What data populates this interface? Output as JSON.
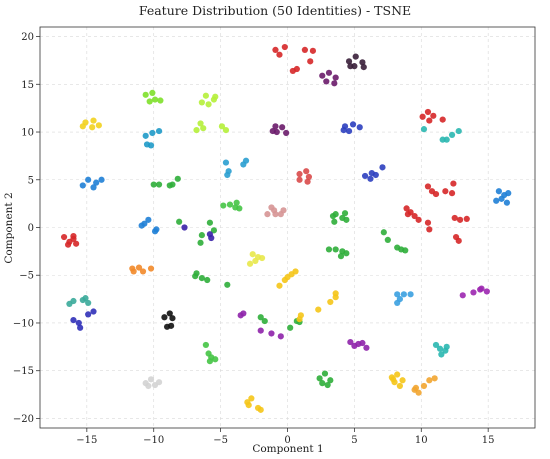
{
  "chart_data": {
    "type": "scatter",
    "title": "Feature Distribution (50 Identities) - TSNE",
    "xlabel": "Component 1",
    "ylabel": "Component 2",
    "xlim": [
      -18.5,
      18.5
    ],
    "ylim": [
      -21,
      21
    ],
    "xticks": [
      -15,
      -10,
      -5,
      0,
      5,
      10,
      15
    ],
    "yticks": [
      -20,
      -15,
      -10,
      -5,
      0,
      5,
      10,
      15,
      20
    ],
    "grid": true,
    "clusters": [
      {
        "color": "#d62728",
        "points": [
          [
            -0.9,
            18.6
          ],
          [
            -0.2,
            18.9
          ],
          [
            -0.6,
            18.1
          ],
          [
            0.4,
            16.4
          ],
          [
            0.7,
            16.6
          ],
          [
            1.3,
            18.6
          ],
          [
            1.9,
            18.5
          ],
          [
            1.7,
            17.4
          ]
        ]
      },
      {
        "color": "#6a1b6a",
        "points": [
          [
            2.6,
            15.9
          ],
          [
            3.1,
            16.2
          ],
          [
            3.6,
            15.7
          ],
          [
            2.9,
            15.3
          ],
          [
            3.5,
            15.1
          ]
        ]
      },
      {
        "color": "#3a1f3a",
        "points": [
          [
            4.6,
            17.4
          ],
          [
            5.1,
            17.9
          ],
          [
            5.6,
            17.3
          ],
          [
            5.0,
            16.9
          ],
          [
            5.7,
            16.8
          ],
          [
            4.7,
            16.9
          ]
        ]
      },
      {
        "color": "#f2d21e",
        "points": [
          [
            -15.1,
            11.0
          ],
          [
            -14.5,
            11.2
          ],
          [
            -14.6,
            10.5
          ],
          [
            -15.3,
            10.6
          ],
          [
            -14.1,
            10.7
          ]
        ]
      },
      {
        "color": "#7ee02a",
        "points": [
          [
            -10.6,
            13.9
          ],
          [
            -10.1,
            14.1
          ],
          [
            -9.9,
            13.4
          ],
          [
            -9.5,
            13.3
          ],
          [
            -10.3,
            13.2
          ]
        ]
      },
      {
        "color": "#b5ef3a",
        "points": [
          [
            -6.1,
            13.8
          ],
          [
            -5.5,
            13.4
          ],
          [
            -5.9,
            12.9
          ],
          [
            -5.4,
            13.7
          ],
          [
            -6.4,
            13.1
          ]
        ]
      },
      {
        "color": "#b5ef3a",
        "points": [
          [
            -6.8,
            10.2
          ],
          [
            -6.3,
            10.4
          ],
          [
            -6.5,
            10.9
          ],
          [
            -4.9,
            10.6
          ],
          [
            -4.6,
            10.2
          ]
        ]
      },
      {
        "color": "#1f9ac8",
        "points": [
          [
            -10.6,
            9.6
          ],
          [
            -10.1,
            9.9
          ],
          [
            -9.6,
            10.1
          ],
          [
            -10.5,
            8.7
          ],
          [
            -10.2,
            8.6
          ]
        ]
      },
      {
        "color": "#6a1b6a",
        "points": [
          [
            -0.9,
            10.6
          ],
          [
            -0.4,
            10.5
          ],
          [
            -0.8,
            10.0
          ],
          [
            -0.1,
            9.9
          ],
          [
            -1.1,
            10.1
          ]
        ]
      },
      {
        "color": "#2c3fbf",
        "points": [
          [
            4.3,
            10.6
          ],
          [
            4.9,
            10.8
          ],
          [
            5.4,
            10.5
          ],
          [
            4.6,
            10.1
          ],
          [
            4.2,
            10.2
          ]
        ]
      },
      {
        "color": "#d62728",
        "points": [
          [
            10.1,
            11.6
          ],
          [
            10.5,
            12.1
          ],
          [
            10.9,
            11.7
          ],
          [
            10.6,
            11.2
          ],
          [
            11.6,
            11.3
          ]
        ]
      },
      {
        "color": "#2ab7b0",
        "points": [
          [
            10.2,
            10.3
          ],
          [
            11.6,
            9.2
          ],
          [
            11.9,
            9.2
          ],
          [
            12.3,
            9.7
          ],
          [
            12.8,
            10.1
          ]
        ]
      },
      {
        "color": "#1f7fd6",
        "points": [
          [
            -15.3,
            4.4
          ],
          [
            -14.9,
            5.0
          ],
          [
            -14.5,
            4.2
          ],
          [
            -14.3,
            4.7
          ],
          [
            -13.9,
            5.0
          ]
        ]
      },
      {
        "color": "#2fae3a",
        "points": [
          [
            -10.0,
            4.5
          ],
          [
            -9.6,
            4.5
          ],
          [
            -8.6,
            4.5
          ],
          [
            -8.2,
            5.1
          ],
          [
            -8.8,
            4.4
          ]
        ]
      },
      {
        "color": "#2a9fd0",
        "points": [
          [
            -4.6,
            6.8
          ],
          [
            -4.4,
            5.9
          ],
          [
            -4.5,
            5.5
          ],
          [
            -3.1,
            7.0
          ],
          [
            -3.3,
            6.6
          ]
        ]
      },
      {
        "color": "#d94a4a",
        "points": [
          [
            0.9,
            5.6
          ],
          [
            1.4,
            5.9
          ],
          [
            1.6,
            5.3
          ],
          [
            0.9,
            5.0
          ],
          [
            1.5,
            4.8
          ]
        ]
      },
      {
        "color": "#2c3fbf",
        "points": [
          [
            5.8,
            5.4
          ],
          [
            6.3,
            5.7
          ],
          [
            6.6,
            5.5
          ],
          [
            7.1,
            6.3
          ],
          [
            6.2,
            5.1
          ]
        ]
      },
      {
        "color": "#d62728",
        "points": [
          [
            10.5,
            4.3
          ],
          [
            10.8,
            3.8
          ],
          [
            11.1,
            3.5
          ],
          [
            11.8,
            3.8
          ],
          [
            12.3,
            3.6
          ],
          [
            12.4,
            4.6
          ]
        ]
      },
      {
        "color": "#1f7fd6",
        "points": [
          [
            15.8,
            3.8
          ],
          [
            16.2,
            3.4
          ],
          [
            16.5,
            3.6
          ],
          [
            16.0,
            3.0
          ],
          [
            16.4,
            2.6
          ],
          [
            15.6,
            2.8
          ]
        ]
      },
      {
        "color": "#d62728",
        "points": [
          [
            -16.7,
            -1.0
          ],
          [
            -16.3,
            -1.5
          ],
          [
            -16.0,
            -1.2
          ],
          [
            -16.4,
            -1.8
          ],
          [
            -15.8,
            -1.7
          ],
          [
            -16.0,
            -0.9
          ]
        ]
      },
      {
        "color": "#1f7fd6",
        "points": [
          [
            -10.7,
            0.4
          ],
          [
            -10.4,
            0.8
          ],
          [
            -9.8,
            -0.2
          ],
          [
            -9.9,
            -0.4
          ],
          [
            -10.9,
            0.2
          ]
        ]
      },
      {
        "color": "#2fae3a",
        "points": [
          [
            -8.1,
            0.6
          ],
          [
            -5.8,
            0.5
          ],
          [
            -5.5,
            -0.3
          ],
          [
            -6.4,
            -0.8
          ],
          [
            -6.5,
            -1.6
          ],
          [
            -6.9,
            -5.1
          ]
        ]
      },
      {
        "color": "#3a22a8",
        "points": [
          [
            -7.7,
            0.0
          ],
          [
            -5.8,
            -0.7
          ],
          [
            -5.7,
            -1.1
          ]
        ]
      },
      {
        "color": "#45c445",
        "points": [
          [
            -4.8,
            2.3
          ],
          [
            -4.3,
            2.4
          ],
          [
            -3.8,
            2.6
          ],
          [
            -3.6,
            2.0
          ],
          [
            -3.9,
            2.1
          ]
        ]
      },
      {
        "color": "#d69595",
        "points": [
          [
            -1.5,
            1.4
          ],
          [
            -1.0,
            1.8
          ],
          [
            -0.9,
            1.4
          ],
          [
            -0.5,
            1.4
          ],
          [
            -0.3,
            1.8
          ],
          [
            -1.2,
            2.1
          ]
        ]
      },
      {
        "color": "#2fae3a",
        "points": [
          [
            3.4,
            1.2
          ],
          [
            3.5,
            0.6
          ],
          [
            4.1,
            1.0
          ],
          [
            4.3,
            1.5
          ],
          [
            4.4,
            0.8
          ],
          [
            3.6,
            1.4
          ]
        ]
      },
      {
        "color": "#d62728",
        "points": [
          [
            8.9,
            2.0
          ],
          [
            9.2,
            1.6
          ],
          [
            9.5,
            1.2
          ],
          [
            9.8,
            0.8
          ],
          [
            10.5,
            0.5
          ],
          [
            10.6,
            -0.2
          ],
          [
            9.0,
            1.4
          ]
        ]
      },
      {
        "color": "#d62728",
        "points": [
          [
            12.5,
            1.0
          ],
          [
            12.9,
            0.8
          ],
          [
            13.4,
            0.9
          ],
          [
            12.6,
            -1.0
          ],
          [
            12.8,
            -1.4
          ]
        ]
      },
      {
        "color": "#2fae3a",
        "points": [
          [
            7.2,
            -0.5
          ],
          [
            7.5,
            -1.3
          ],
          [
            8.2,
            -2.1
          ],
          [
            8.5,
            -2.3
          ],
          [
            8.8,
            -2.4
          ]
        ]
      },
      {
        "color": "#2fae3a",
        "points": [
          [
            3.1,
            -2.3
          ],
          [
            3.6,
            -2.3
          ],
          [
            4.1,
            -2.5
          ],
          [
            4.0,
            -3.0
          ],
          [
            4.4,
            -2.7
          ]
        ]
      },
      {
        "color": "#f28a2a",
        "points": [
          [
            -11.6,
            -4.3
          ],
          [
            -11.1,
            -4.2
          ],
          [
            -11.5,
            -4.6
          ],
          [
            -10.8,
            -4.6
          ],
          [
            -10.2,
            -4.3
          ]
        ]
      },
      {
        "color": "#2fae3a",
        "points": [
          [
            -6.8,
            -4.8
          ],
          [
            -6.4,
            -5.3
          ],
          [
            -6.0,
            -5.5
          ],
          [
            -4.5,
            -6.0
          ]
        ]
      },
      {
        "color": "#e8e84a",
        "points": [
          [
            -2.6,
            -2.8
          ],
          [
            -2.4,
            -3.5
          ],
          [
            -2.2,
            -3.1
          ],
          [
            -1.9,
            -3.2
          ],
          [
            -2.8,
            -3.8
          ]
        ]
      },
      {
        "color": "#f5c518",
        "points": [
          [
            0.0,
            -5.2
          ],
          [
            0.3,
            -4.9
          ],
          [
            0.6,
            -4.6
          ],
          [
            -0.2,
            -5.5
          ],
          [
            -0.6,
            -6.1
          ]
        ]
      },
      {
        "color": "#f5c518",
        "points": [
          [
            2.3,
            -8.6
          ],
          [
            3.6,
            -6.9
          ],
          [
            3.6,
            -7.3
          ],
          [
            3.2,
            -7.8
          ]
        ]
      },
      {
        "color": "#3aa0e0",
        "points": [
          [
            8.2,
            -7.0
          ],
          [
            8.7,
            -7.0
          ],
          [
            9.2,
            -7.0
          ],
          [
            8.4,
            -7.5
          ],
          [
            8.2,
            -7.9
          ]
        ]
      },
      {
        "color": "#9c27b0",
        "points": [
          [
            13.1,
            -7.1
          ],
          [
            13.9,
            -6.8
          ],
          [
            14.4,
            -6.5
          ],
          [
            14.9,
            -6.7
          ],
          [
            14.5,
            -6.4
          ]
        ]
      },
      {
        "color": "#3aaa9a",
        "points": [
          [
            -16.3,
            -8.0
          ],
          [
            -16.0,
            -7.7
          ],
          [
            -15.3,
            -7.6
          ],
          [
            -14.9,
            -7.9
          ],
          [
            -15.1,
            -7.4
          ]
        ]
      },
      {
        "color": "#3030b8",
        "points": [
          [
            -16.0,
            -9.7
          ],
          [
            -15.6,
            -10.0
          ],
          [
            -15.5,
            -10.5
          ],
          [
            -14.9,
            -9.1
          ],
          [
            -14.5,
            -8.8
          ]
        ]
      },
      {
        "color": "#111111",
        "points": [
          [
            -9.2,
            -9.4
          ],
          [
            -8.8,
            -9.0
          ],
          [
            -8.6,
            -9.5
          ],
          [
            -9.0,
            -10.4
          ],
          [
            -8.7,
            -10.3
          ]
        ]
      },
      {
        "color": "#8e24aa",
        "points": [
          [
            -3.5,
            -9.2
          ],
          [
            -3.3,
            -9.0
          ],
          [
            -2.0,
            -10.8
          ],
          [
            -1.2,
            -11.1
          ],
          [
            -0.5,
            -11.4
          ]
        ]
      },
      {
        "color": "#2fae3a",
        "points": [
          [
            -2.0,
            -9.4
          ],
          [
            -1.7,
            -9.8
          ],
          [
            0.2,
            -10.5
          ],
          [
            0.7,
            -9.8
          ],
          [
            0.9,
            -9.9
          ]
        ]
      },
      {
        "color": "#f5c518",
        "points": [
          [
            0.9,
            -9.6
          ],
          [
            1.0,
            -9.2
          ]
        ]
      },
      {
        "color": "#8e24aa",
        "points": [
          [
            4.7,
            -12.0
          ],
          [
            5.0,
            -12.4
          ],
          [
            5.3,
            -12.2
          ],
          [
            5.6,
            -12.1
          ],
          [
            5.9,
            -12.6
          ]
        ]
      },
      {
        "color": "#45c445",
        "points": [
          [
            -6.1,
            -12.3
          ],
          [
            -5.9,
            -13.2
          ],
          [
            -5.7,
            -13.6
          ],
          [
            -5.4,
            -13.8
          ],
          [
            -5.8,
            -14.0
          ]
        ]
      },
      {
        "color": "#2ab7b0",
        "points": [
          [
            11.1,
            -12.3
          ],
          [
            11.4,
            -12.7
          ],
          [
            11.8,
            -12.9
          ],
          [
            11.5,
            -13.3
          ],
          [
            11.9,
            -12.5
          ]
        ]
      },
      {
        "color": "#2fae3a",
        "points": [
          [
            2.4,
            -15.8
          ],
          [
            2.8,
            -15.3
          ],
          [
            2.6,
            -16.3
          ],
          [
            3.0,
            -16.5
          ],
          [
            3.2,
            -16.0
          ]
        ]
      },
      {
        "color": "#f5c518",
        "points": [
          [
            7.8,
            -15.7
          ],
          [
            8.2,
            -15.4
          ],
          [
            8.0,
            -16.2
          ],
          [
            8.6,
            -16.0
          ],
          [
            8.4,
            -16.6
          ],
          [
            7.9,
            -15.9
          ]
        ]
      },
      {
        "color": "#f2a530",
        "points": [
          [
            9.5,
            -17.0
          ],
          [
            9.8,
            -17.3
          ],
          [
            10.2,
            -16.6
          ],
          [
            10.6,
            -16.0
          ],
          [
            11.0,
            -15.8
          ],
          [
            9.6,
            -16.8
          ]
        ]
      },
      {
        "color": "#d3d3d3",
        "points": [
          [
            -10.6,
            -16.3
          ],
          [
            -10.2,
            -15.9
          ],
          [
            -9.9,
            -16.5
          ],
          [
            -9.6,
            -16.2
          ],
          [
            -10.4,
            -16.6
          ]
        ]
      },
      {
        "color": "#f5c518",
        "points": [
          [
            -3.0,
            -18.3
          ],
          [
            -2.7,
            -17.9
          ],
          [
            -2.2,
            -18.9
          ],
          [
            -2.0,
            -19.1
          ],
          [
            -2.9,
            -18.6
          ]
        ]
      }
    ]
  }
}
